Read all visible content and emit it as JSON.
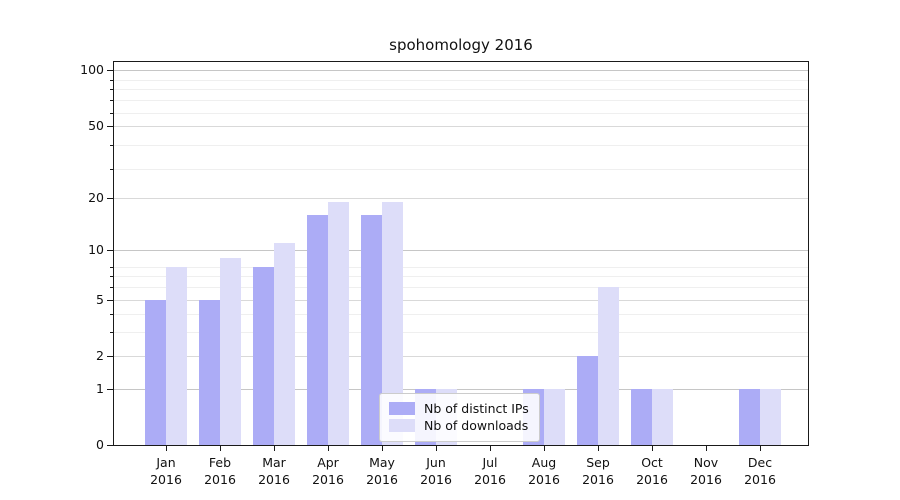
{
  "chart_data": {
    "type": "bar",
    "title": "spohomology 2016",
    "categories": [
      "Jan",
      "Feb",
      "Mar",
      "Apr",
      "May",
      "Jun",
      "Jul",
      "Aug",
      "Sep",
      "Oct",
      "Nov",
      "Dec"
    ],
    "year": "2016",
    "series": [
      {
        "name": "Nb of distinct IPs",
        "color": "#acacf6",
        "values": [
          5,
          5,
          8,
          16,
          16,
          1,
          0,
          1,
          2,
          1,
          0,
          1
        ]
      },
      {
        "name": "Nb of downloads",
        "color": "#ddddf9",
        "values": [
          8,
          9,
          11,
          19,
          19,
          1,
          0,
          1,
          6,
          1,
          0,
          1
        ]
      }
    ],
    "y_axis": {
      "scale": "log1p",
      "tick_labels": [
        0,
        1,
        2,
        5,
        10,
        20,
        50,
        100
      ],
      "minor_lines": [
        3,
        4,
        6,
        7,
        8,
        29,
        39,
        59,
        69,
        79,
        89
      ],
      "max": 110
    },
    "x_axis": {
      "label_line2": "2016"
    },
    "legend": {
      "entries": [
        "Nb of distinct IPs",
        "Nb of downloads"
      ],
      "position": "lower center"
    },
    "grid": true,
    "colors": {
      "major_gridline": "#c6c6c6",
      "labeled_gridline": "#d9d9d9",
      "minor_gridline": "#efefef",
      "spine": "#1a1a1a"
    }
  }
}
